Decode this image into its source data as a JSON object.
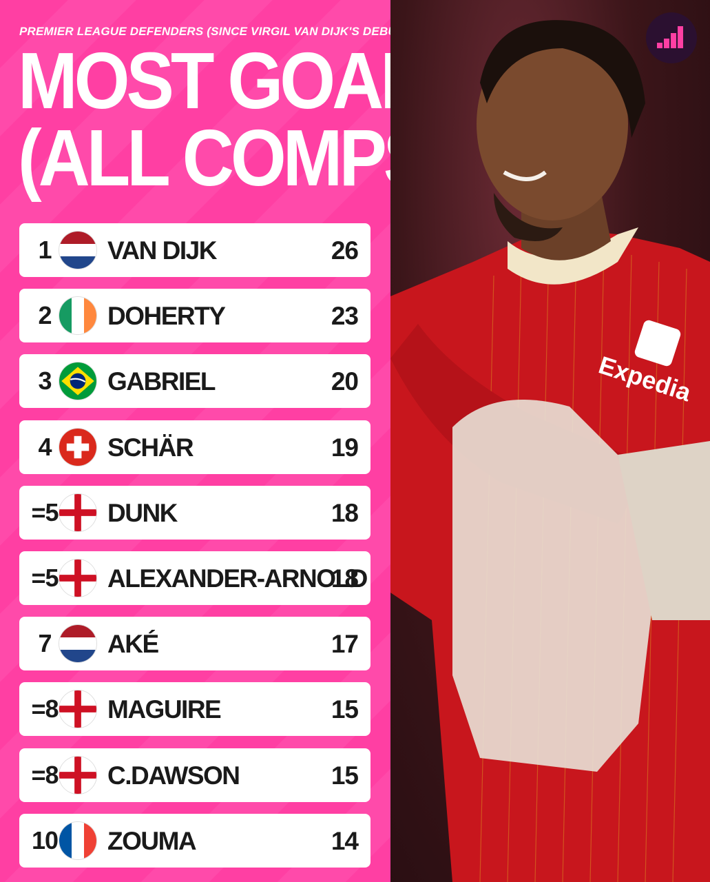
{
  "header": {
    "subtitle": "PREMIER LEAGUE DEFENDERS (SINCE VIRGIL VAN DIJK'S DEBUT)",
    "title_line1": "MOST GOALS",
    "title_line2": "(ALL COMPS)"
  },
  "rows": [
    {
      "rank": "1",
      "flag": "netherlands-flag",
      "name": "VAN DIJK",
      "goals": "26"
    },
    {
      "rank": "2",
      "flag": "ireland-flag",
      "name": "DOHERTY",
      "goals": "23"
    },
    {
      "rank": "3",
      "flag": "brazil-flag",
      "name": "GABRIEL",
      "goals": "20"
    },
    {
      "rank": "4",
      "flag": "switzerland-flag",
      "name": "SCHÄR",
      "goals": "19"
    },
    {
      "rank": "=5",
      "flag": "england-flag",
      "name": "DUNK",
      "goals": "18"
    },
    {
      "rank": "=5",
      "flag": "england-flag",
      "name": "ALEXANDER-ARNOLD",
      "goals": "18"
    },
    {
      "rank": "7",
      "flag": "netherlands-flag",
      "name": "AKÉ",
      "goals": "17"
    },
    {
      "rank": "=8",
      "flag": "england-flag",
      "name": "MAGUIRE",
      "goals": "15"
    },
    {
      "rank": "=8",
      "flag": "england-flag",
      "name": "C.DAWSON",
      "goals": "15"
    },
    {
      "rank": "10",
      "flag": "france-flag",
      "name": "ZOUMA",
      "goals": "14"
    }
  ],
  "photo": {
    "sponsor_text": "Expedia",
    "description_icon": "player-photo"
  },
  "colors": {
    "background_pink": "#ff3fa3",
    "row_bg": "#ffffff",
    "text_dark": "#1a1a1a",
    "kit_red": "#c8161d"
  }
}
